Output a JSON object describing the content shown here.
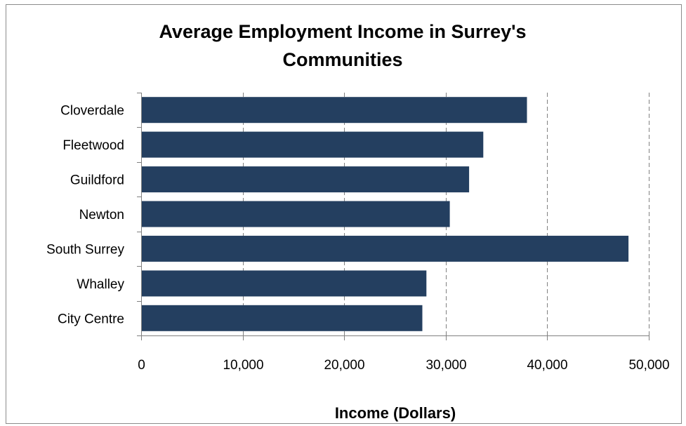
{
  "chart_data": {
    "type": "bar",
    "orientation": "horizontal",
    "title_lines": [
      "Average Employment Income in Surrey's",
      "Communities"
    ],
    "xlabel": "Income (Dollars)",
    "ylabel": "",
    "categories": [
      "Cloverdale",
      "Fleetwood",
      "Guildford",
      "Newton",
      "South Surrey",
      "Whalley",
      "City Centre"
    ],
    "values": [
      38000,
      33700,
      32300,
      30400,
      48000,
      28100,
      27700
    ],
    "xlim": [
      0,
      50000
    ],
    "x_ticks": [
      0,
      10000,
      20000,
      30000,
      40000,
      50000
    ],
    "x_tick_labels": [
      "0",
      "10,000",
      "20,000",
      "30,000",
      "40,000",
      "50,000"
    ],
    "grid": "vertical dashed",
    "bar_color": "#243f60",
    "grid_color": "#808080"
  }
}
